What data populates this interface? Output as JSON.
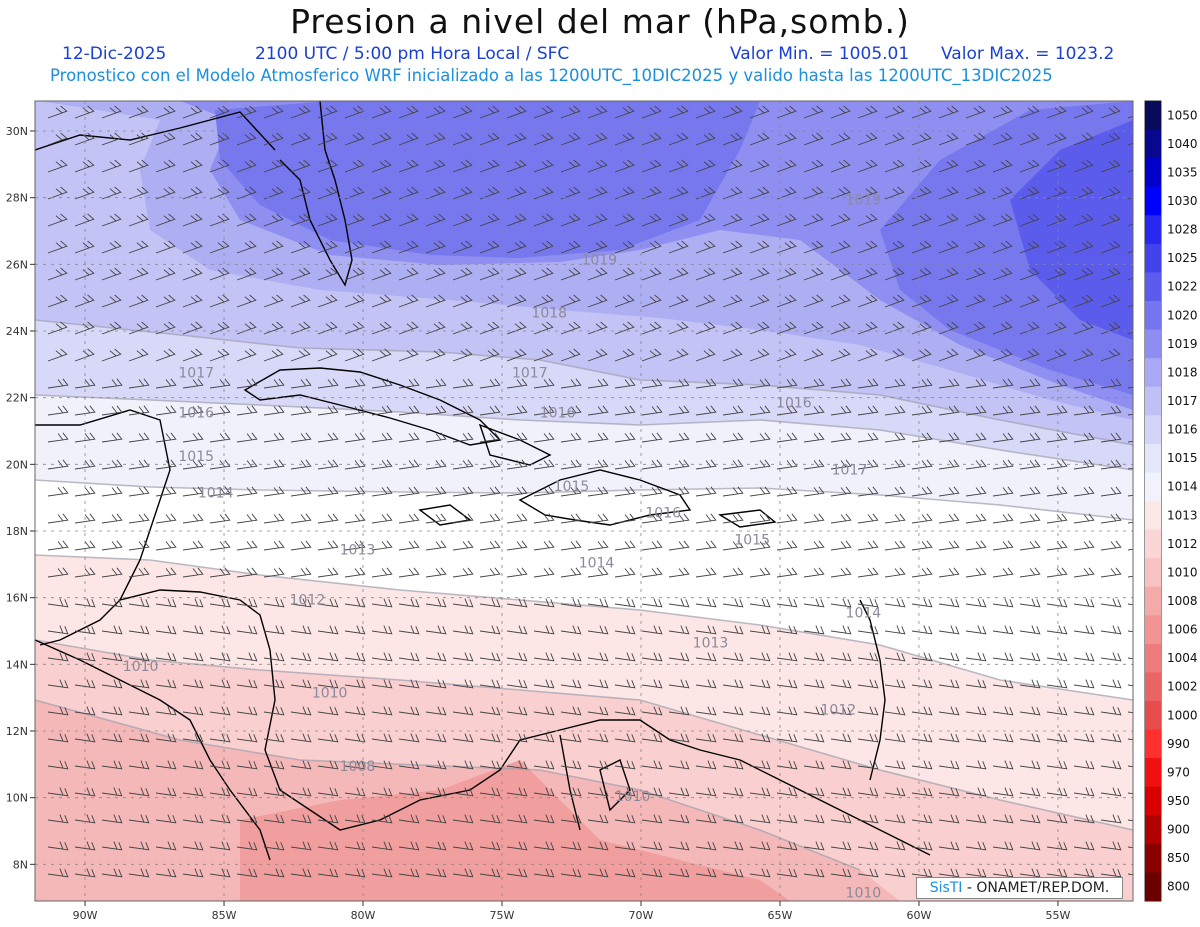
{
  "title": "Presion a nivel del mar (hPa,somb.)",
  "header": {
    "date": "12-Dic-2025",
    "time": "2100 UTC / 5:00 pm Hora Local / SFC",
    "vmin": "Valor Min. = 1005.01",
    "vmax": "Valor Max. = 1023.2",
    "model_line": "Pronostico con el Modelo Atmosferico WRF inicializado a las 1200UTC_10DIC2025 y valido hasta las  1200UTC_13DIC2025"
  },
  "axes": {
    "lat_labels": [
      "30N",
      "28N",
      "26N",
      "24N",
      "22N",
      "20N",
      "18N",
      "16N",
      "14N",
      "12N",
      "10N",
      "8N"
    ],
    "lon_labels": [
      "90W",
      "85W",
      "80W",
      "75W",
      "70W",
      "65W",
      "60W",
      "55W"
    ]
  },
  "colorbar": {
    "levels": [
      "1050",
      "1040",
      "1035",
      "1030",
      "1028",
      "1025",
      "1022",
      "1020",
      "1019",
      "1018",
      "1017",
      "1016",
      "1015",
      "1014",
      "1013",
      "1012",
      "1010",
      "1008",
      "1006",
      "1004",
      "1002",
      "1000",
      "990",
      "970",
      "950",
      "900",
      "850",
      "800"
    ],
    "colors": [
      "#0a0a5a",
      "#08088f",
      "#0000c8",
      "#0000ff",
      "#2828f0",
      "#4343ee",
      "#5b5bee",
      "#7575ef",
      "#8e8ef2",
      "#a8a8f4",
      "#c0c0f6",
      "#d4d4f8",
      "#e6e6fa",
      "#f2f2fc",
      "#fde8e8",
      "#fbd6d6",
      "#f9c2c2",
      "#f5aaaa",
      "#f29494",
      "#ee7c7c",
      "#ea6464",
      "#e64c4c",
      "#ff3030",
      "#f01010",
      "#d80000",
      "#b00000",
      "#8a0000",
      "#6a0000"
    ]
  },
  "isobar_labels": [
    {
      "text": "1019",
      "lon": -62.0,
      "lat": 27.8
    },
    {
      "text": "1019",
      "lon": -71.5,
      "lat": 26.0
    },
    {
      "text": "1018",
      "lon": -73.3,
      "lat": 24.4
    },
    {
      "text": "1017",
      "lon": -86.0,
      "lat": 22.6
    },
    {
      "text": "1017",
      "lon": -74.0,
      "lat": 22.6
    },
    {
      "text": "1016",
      "lon": -64.5,
      "lat": 21.7
    },
    {
      "text": "1016",
      "lon": -86.0,
      "lat": 21.4
    },
    {
      "text": "1016",
      "lon": -73.0,
      "lat": 21.4
    },
    {
      "text": "1015",
      "lon": -86.0,
      "lat": 20.1
    },
    {
      "text": "1015",
      "lon": -72.5,
      "lat": 19.2
    },
    {
      "text": "1017",
      "lon": -62.5,
      "lat": 19.7
    },
    {
      "text": "1014",
      "lon": -85.3,
      "lat": 19.0
    },
    {
      "text": "1016",
      "lon": -69.2,
      "lat": 18.4
    },
    {
      "text": "1015",
      "lon": -66.0,
      "lat": 17.6
    },
    {
      "text": "1013",
      "lon": -80.2,
      "lat": 17.3
    },
    {
      "text": "1014",
      "lon": -71.6,
      "lat": 16.9
    },
    {
      "text": "1012",
      "lon": -82.0,
      "lat": 15.8
    },
    {
      "text": "1014",
      "lon": -62.0,
      "lat": 15.4
    },
    {
      "text": "1013",
      "lon": -67.5,
      "lat": 14.5
    },
    {
      "text": "1010",
      "lon": -88.0,
      "lat": 13.8
    },
    {
      "text": "1010",
      "lon": -81.2,
      "lat": 13.0
    },
    {
      "text": "1012",
      "lon": -62.9,
      "lat": 12.5
    },
    {
      "text": "1008",
      "lon": -80.2,
      "lat": 10.8
    },
    {
      "text": "1010",
      "lon": -70.3,
      "lat": 9.9
    },
    {
      "text": "1010",
      "lon": -62.0,
      "lat": 7.0
    }
  ],
  "credit": {
    "brand": "SisTI",
    "rest": " - ONAMET/REP.DOM."
  }
}
